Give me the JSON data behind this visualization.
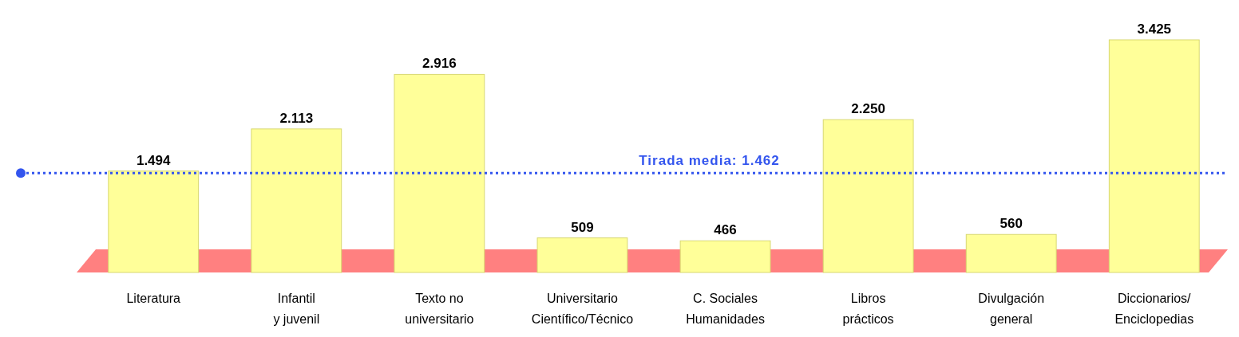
{
  "chart_data": {
    "type": "bar",
    "categories": [
      "Literatura",
      "Infantil\ny juvenil",
      "Texto no\nuniversitario",
      "Universitario\nCientífico/Técnico",
      "C. Sociales\nHumanidades",
      "Libros\nprácticos",
      "Divulgación\ngeneral",
      "Diccionarios/\nEnciclopedias"
    ],
    "values": [
      1494,
      2113,
      2916,
      509,
      466,
      2250,
      560,
      3425
    ],
    "value_labels": [
      "1.494",
      "2.113",
      "2.916",
      "509",
      "466",
      "2.250",
      "560",
      "3.425"
    ],
    "color": "#ffff99",
    "ref_lines": [
      {
        "axis": "y",
        "value": 1462,
        "label": "Tirada media: 1.462",
        "color": "#3355ee",
        "line_style": "dotted"
      }
    ]
  }
}
